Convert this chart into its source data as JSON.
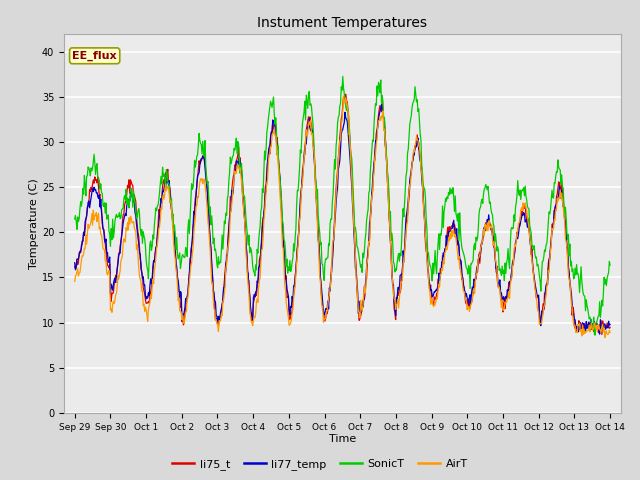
{
  "title": "Instument Temperatures",
  "xlabel": "Time",
  "ylabel": "Temperature (C)",
  "ylim": [
    0,
    42
  ],
  "yticks": [
    0,
    5,
    10,
    15,
    20,
    25,
    30,
    35,
    40
  ],
  "fig_bg_color": "#d9d9d9",
  "plot_bg_color": "#ebebeb",
  "annotation_text": "EE_flux",
  "annotation_box_color": "#ffffcc",
  "annotation_text_color": "#880000",
  "line_colors": {
    "li75_t": "#dd0000",
    "li77_temp": "#0000cc",
    "SonicT": "#00cc00",
    "AirT": "#ff9900"
  },
  "x_tick_labels": [
    "Sep 29",
    "Sep 30",
    "Oct 1",
    "Oct 2",
    "Oct 3",
    "Oct 4",
    "Oct 5",
    "Oct 6",
    "Oct 7",
    "Oct 8",
    "Oct 9",
    "Oct 10",
    "Oct 11",
    "Oct 12",
    "Oct 13",
    "Oct 14"
  ],
  "x_tick_positions": [
    0,
    1,
    2,
    3,
    4,
    5,
    6,
    7,
    8,
    9,
    10,
    11,
    12,
    13,
    14,
    15
  ]
}
